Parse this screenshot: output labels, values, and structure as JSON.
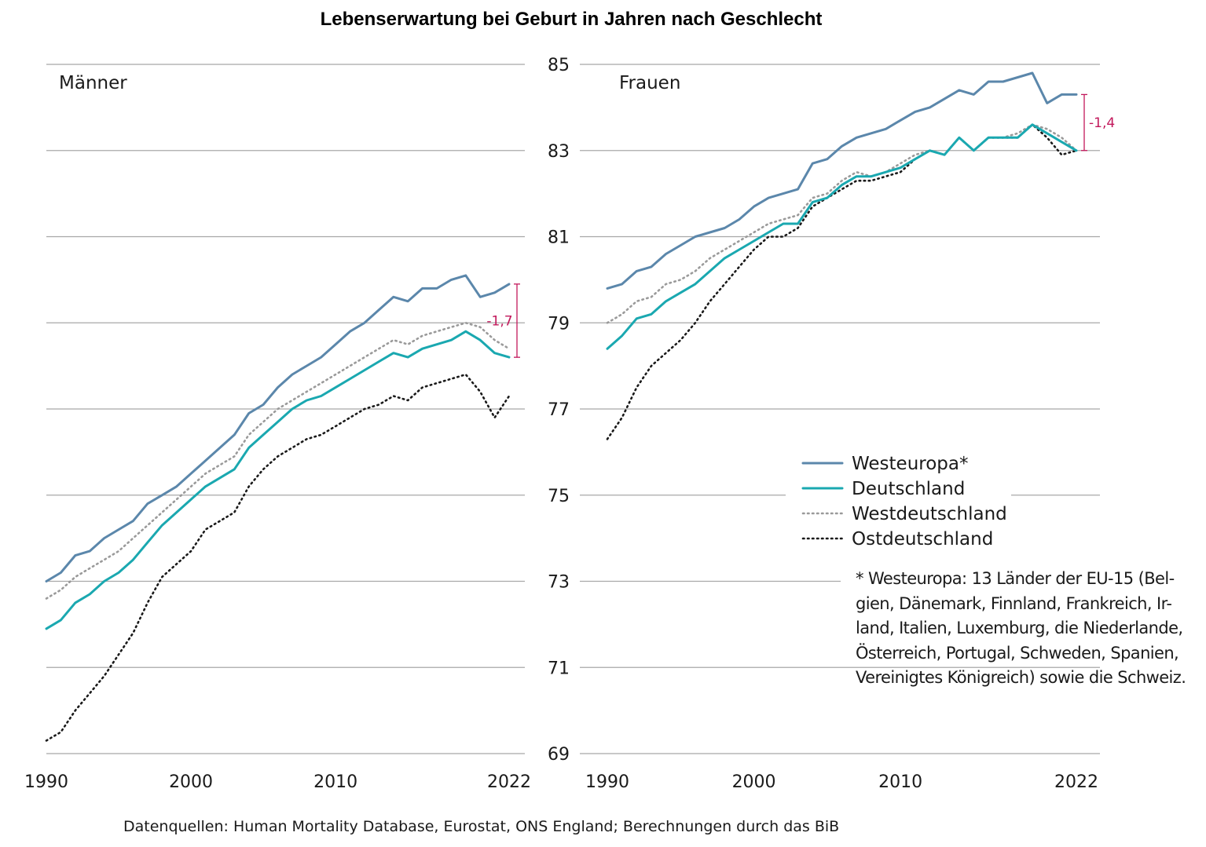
{
  "chart_data": {
    "type": "line",
    "title": "Lebenserwartung bei Geburt in Jahren nach Geschlecht",
    "x": [
      1990,
      1991,
      1992,
      1993,
      1994,
      1995,
      1996,
      1997,
      1998,
      1999,
      2000,
      2001,
      2002,
      2003,
      2004,
      2005,
      2006,
      2007,
      2008,
      2009,
      2010,
      2011,
      2012,
      2013,
      2014,
      2015,
      2016,
      2017,
      2018,
      2019,
      2020,
      2021,
      2022
    ],
    "ylim": [
      69,
      85
    ],
    "yticks": [
      "69",
      "71",
      "73",
      "75",
      "77",
      "79",
      "81",
      "83",
      "85"
    ],
    "xticks": [
      "1990",
      "2000",
      "2010",
      "2022"
    ],
    "legend": {
      "position": "right",
      "entries": [
        {
          "name": "Westeuropa*",
          "color": "#5b87ab",
          "style": "solid"
        },
        {
          "name": "Deutschland",
          "color": "#1aa8b0",
          "style": "solid"
        },
        {
          "name": "Westdeutschland",
          "color": "#9a9a9a",
          "style": "dotted"
        },
        {
          "name": "Ostdeutschland",
          "color": "#1a1a1a",
          "style": "dotted"
        }
      ]
    },
    "panels": [
      {
        "label": "Männer",
        "series": [
          {
            "name": "Westeuropa*",
            "values": [
              73.0,
              73.2,
              73.6,
              73.7,
              74.0,
              74.2,
              74.4,
              74.8,
              75.0,
              75.2,
              75.5,
              75.8,
              76.1,
              76.4,
              76.9,
              77.1,
              77.5,
              77.8,
              78.0,
              78.2,
              78.5,
              78.8,
              79.0,
              79.3,
              79.6,
              79.5,
              79.8,
              79.8,
              80.0,
              80.1,
              79.6,
              79.7,
              79.9
            ]
          },
          {
            "name": "Deutschland",
            "values": [
              71.9,
              72.1,
              72.5,
              72.7,
              73.0,
              73.2,
              73.5,
              73.9,
              74.3,
              74.6,
              74.9,
              75.2,
              75.4,
              75.6,
              76.1,
              76.4,
              76.7,
              77.0,
              77.2,
              77.3,
              77.5,
              77.7,
              77.9,
              78.1,
              78.3,
              78.2,
              78.4,
              78.5,
              78.6,
              78.8,
              78.6,
              78.3,
              78.2
            ]
          },
          {
            "name": "Westdeutschland",
            "values": [
              72.6,
              72.8,
              73.1,
              73.3,
              73.5,
              73.7,
              74.0,
              74.3,
              74.6,
              74.9,
              75.2,
              75.5,
              75.7,
              75.9,
              76.4,
              76.7,
              77.0,
              77.2,
              77.4,
              77.6,
              77.8,
              78.0,
              78.2,
              78.4,
              78.6,
              78.5,
              78.7,
              78.8,
              78.9,
              79.0,
              78.9,
              78.6,
              78.4
            ]
          },
          {
            "name": "Ostdeutschland",
            "values": [
              69.3,
              69.5,
              70.0,
              70.4,
              70.8,
              71.3,
              71.8,
              72.5,
              73.1,
              73.4,
              73.7,
              74.2,
              74.4,
              74.6,
              75.2,
              75.6,
              75.9,
              76.1,
              76.3,
              76.4,
              76.6,
              76.8,
              77.0,
              77.1,
              77.3,
              77.2,
              77.5,
              77.6,
              77.7,
              77.8,
              77.4,
              76.8,
              77.3
            ]
          }
        ],
        "difference": {
          "label": "-1,7",
          "from": 79.9,
          "to": 78.2
        }
      },
      {
        "label": "Frauen",
        "series": [
          {
            "name": "Westeuropa*",
            "values": [
              79.8,
              79.9,
              80.2,
              80.3,
              80.6,
              80.8,
              81.0,
              81.1,
              81.2,
              81.4,
              81.7,
              81.9,
              82.0,
              82.1,
              82.7,
              82.8,
              83.1,
              83.3,
              83.4,
              83.5,
              83.7,
              83.9,
              84.0,
              84.2,
              84.4,
              84.3,
              84.6,
              84.6,
              84.7,
              84.8,
              84.1,
              84.3,
              84.3
            ]
          },
          {
            "name": "Deutschland",
            "values": [
              78.4,
              78.7,
              79.1,
              79.2,
              79.5,
              79.7,
              79.9,
              80.2,
              80.5,
              80.7,
              80.9,
              81.1,
              81.3,
              81.3,
              81.8,
              81.9,
              82.2,
              82.4,
              82.4,
              82.5,
              82.6,
              82.8,
              83.0,
              82.9,
              83.3,
              83.0,
              83.3,
              83.3,
              83.3,
              83.6,
              83.4,
              83.2,
              83.0
            ]
          },
          {
            "name": "Westdeutschland",
            "values": [
              79.0,
              79.2,
              79.5,
              79.6,
              79.9,
              80.0,
              80.2,
              80.5,
              80.7,
              80.9,
              81.1,
              81.3,
              81.4,
              81.5,
              81.9,
              82.0,
              82.3,
              82.5,
              82.4,
              82.5,
              82.7,
              82.9,
              83.0,
              82.9,
              83.3,
              83.0,
              83.3,
              83.3,
              83.4,
              83.6,
              83.5,
              83.3,
              83.0
            ]
          },
          {
            "name": "Ostdeutschland",
            "values": [
              76.3,
              76.8,
              77.5,
              78.0,
              78.3,
              78.6,
              79.0,
              79.5,
              79.9,
              80.3,
              80.7,
              81.0,
              81.0,
              81.2,
              81.7,
              81.9,
              82.1,
              82.3,
              82.3,
              82.4,
              82.5,
              82.8,
              83.0,
              82.9,
              83.3,
              83.0,
              83.3,
              83.3,
              83.3,
              83.6,
              83.3,
              82.9,
              83.0
            ]
          }
        ],
        "difference": {
          "label": "-1,4",
          "from": 84.3,
          "to": 83.0
        }
      }
    ]
  },
  "footnote": "* Westeuropa: 13 Länder der EU-15 (Bel-gien, Dänemark, Finnland, Frankreich, Ir-land, Italien, Luxemburg, die Niederlande, Österreich, Portugal, Schweden, Spanien, Vereinigtes Königreich) sowie die Schweiz.",
  "footnote_lines": [
    "* Westeuropa: 13 Länder der EU-15 (Bel-",
    "gien, Dänemark, Finnland, Frankreich, Ir-",
    "land, Italien, Luxemburg, die Niederlande,",
    "Österreich, Portugal, Schweden, Spanien,",
    "Vereinigtes Königreich) sowie die Schweiz."
  ],
  "source": "Datenquellen: Human Mortality Database, Eurostat, ONS England; Berechnungen durch das BiB"
}
